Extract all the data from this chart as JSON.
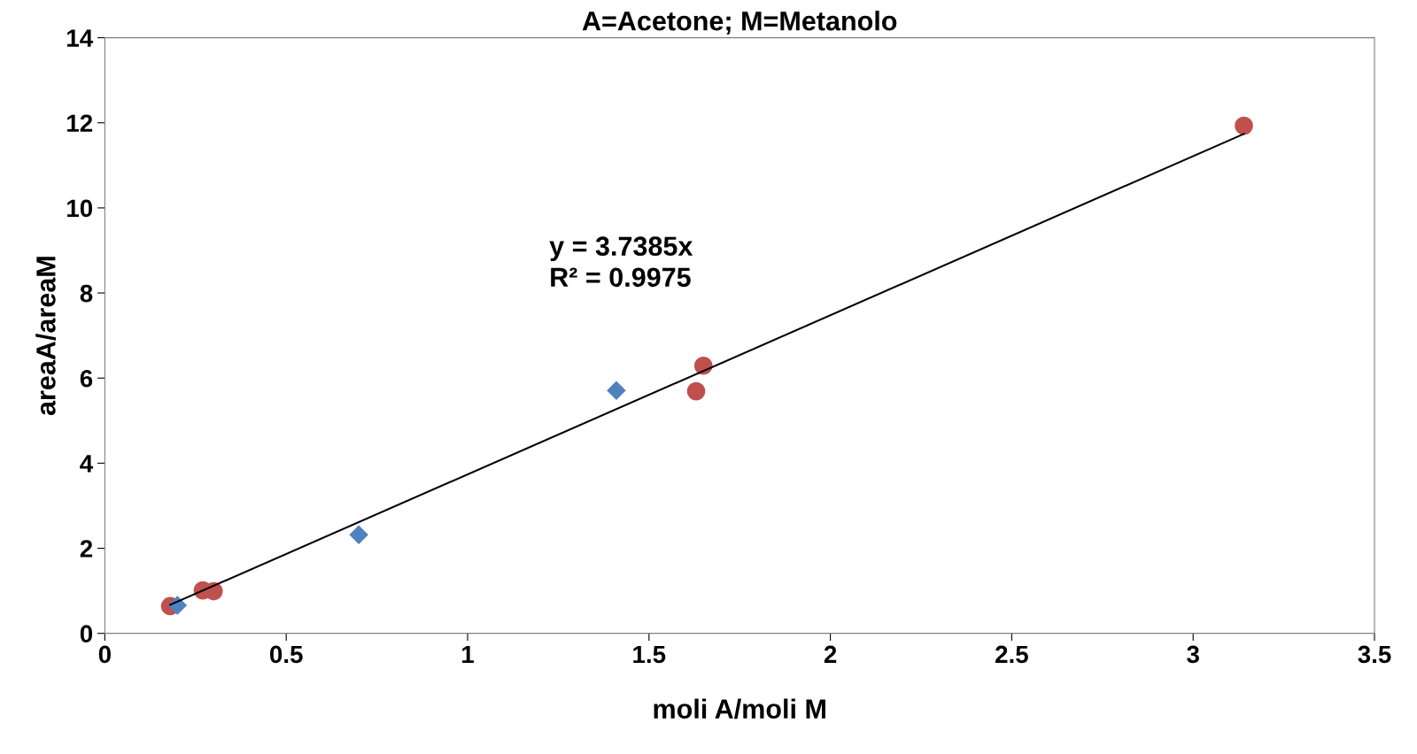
{
  "chart_data": {
    "type": "scatter",
    "title": "A=Acetone; M=Metanolo",
    "xlabel": "moli A/moli M",
    "ylabel": "areaA/areaM",
    "series": [
      {
        "color": "#c0504d",
        "marker": "circle",
        "x": [
          0.18,
          0.27,
          0.3,
          1.65,
          1.63,
          3.14
        ],
        "values": [
          0.64,
          1.01,
          0.99,
          6.29,
          5.69,
          11.93
        ]
      },
      {
        "color": "#4f81bd",
        "marker": "diamond",
        "x": [
          0.2,
          0.7,
          1.41
        ],
        "values": [
          0.66,
          2.32,
          5.71
        ]
      },
      {
        "type": "line",
        "color": "#000000",
        "x": [
          0.18,
          3.14
        ],
        "values": [
          0.67,
          11.74
        ]
      }
    ],
    "annotations": [
      "y = 3.7385x\nR² = 0.9975"
    ],
    "xlim": [
      0,
      3.5
    ],
    "xticks": [
      0,
      0.5,
      1,
      1.5,
      2,
      2.5,
      3,
      3.5
    ],
    "ylim": [
      0,
      14
    ],
    "yticks": [
      0,
      2,
      4,
      6,
      8,
      10,
      12,
      14
    ],
    "grid": false,
    "legend": false
  }
}
